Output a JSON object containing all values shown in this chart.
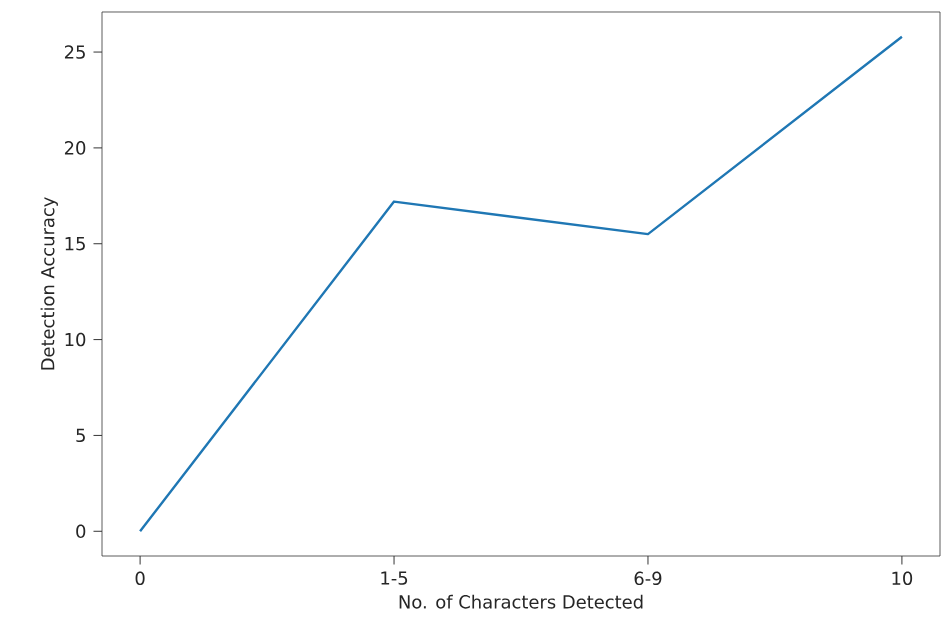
{
  "chart_data": {
    "type": "line",
    "xlabel": "No. of Characters Detected",
    "ylabel": "Detection Accuracy",
    "categories": [
      "0",
      "1-5",
      "6-9",
      "10"
    ],
    "series": [
      {
        "color": "#1f77b4",
        "values": [
          0,
          17.2,
          15.5,
          25.8
        ]
      }
    ],
    "ylim": [
      -1.29,
      27.09
    ],
    "yticks": [
      0,
      5,
      10,
      15,
      20,
      25
    ],
    "grid": false,
    "marker": "none",
    "line_style": "solid"
  }
}
